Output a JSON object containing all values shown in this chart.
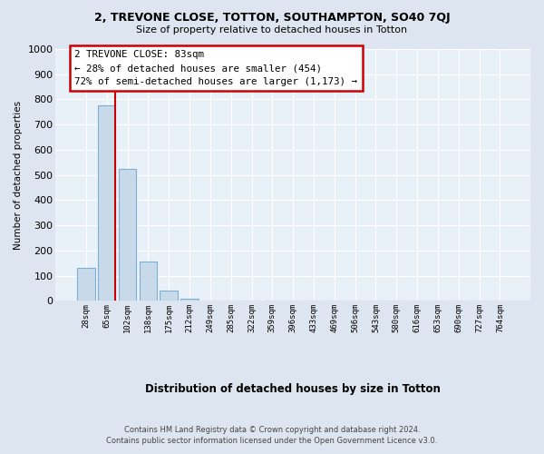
{
  "title": "2, TREVONE CLOSE, TOTTON, SOUTHAMPTON, SO40 7QJ",
  "subtitle": "Size of property relative to detached houses in Totton",
  "xlabel": "Distribution of detached houses by size in Totton",
  "ylabel": "Number of detached properties",
  "bar_labels": [
    "28sqm",
    "65sqm",
    "102sqm",
    "138sqm",
    "175sqm",
    "212sqm",
    "249sqm",
    "285sqm",
    "322sqm",
    "359sqm",
    "396sqm",
    "433sqm",
    "469sqm",
    "506sqm",
    "543sqm",
    "580sqm",
    "616sqm",
    "653sqm",
    "690sqm",
    "727sqm",
    "764sqm"
  ],
  "bar_values": [
    130,
    778,
    525,
    157,
    40,
    10,
    0,
    0,
    0,
    0,
    0,
    0,
    0,
    0,
    0,
    0,
    0,
    0,
    0,
    0,
    0
  ],
  "bar_color": "#c8d9ea",
  "bar_edge_color": "#7bafd4",
  "vline_color": "#cc0000",
  "ylim": [
    0,
    1000
  ],
  "yticks": [
    0,
    100,
    200,
    300,
    400,
    500,
    600,
    700,
    800,
    900,
    1000
  ],
  "annotation_box_text": "2 TREVONE CLOSE: 83sqm\n← 28% of detached houses are smaller (454)\n72% of semi-detached houses are larger (1,173) →",
  "annotation_box_color": "#cc0000",
  "footer_line1": "Contains HM Land Registry data © Crown copyright and database right 2024.",
  "footer_line2": "Contains public sector information licensed under the Open Government Licence v3.0.",
  "bg_color": "#dde6f0",
  "plot_bg_color": "#e8f0f8"
}
